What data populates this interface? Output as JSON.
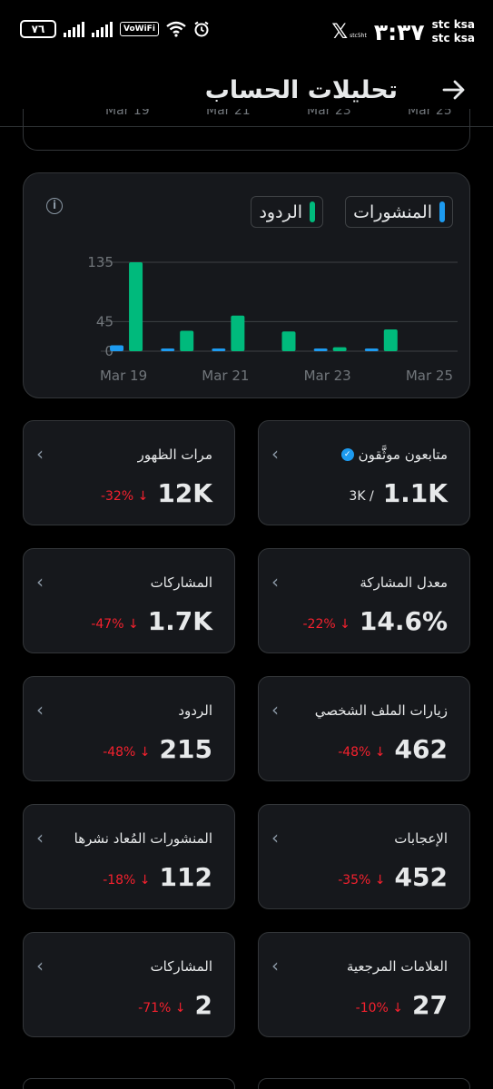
{
  "status_bar": {
    "battery": "٧٦",
    "vowifi": "VoWiFi",
    "clock": "٣:٣٧",
    "carrier_line1": "stc ksa",
    "carrier_line2": "stc ksa",
    "x_logo": "𝕏",
    "x_small": "stc5ht"
  },
  "header": {
    "title": "تحليلات الحساب",
    "back_icon": "arrow-right-icon"
  },
  "partial_chart": {
    "ticks": [
      "Mar 19",
      "Mar 21",
      "Mar 23",
      "Mar 25"
    ]
  },
  "chart": {
    "legend_posts": "المنشورات",
    "legend_replies": "الردود",
    "colors": {
      "posts": "#1d9bf0",
      "replies": "#00ba7c"
    }
  },
  "chart_data": {
    "type": "bar",
    "categories": [
      "Mar 19",
      "Mar 20",
      "Mar 21",
      "Mar 22",
      "Mar 23",
      "Mar 24",
      "Mar 25"
    ],
    "x_tick_labels": [
      "Mar 19",
      "Mar 21",
      "Mar 23",
      "Mar 25"
    ],
    "y_tick_labels": [
      "135",
      "45",
      "0"
    ],
    "series": [
      {
        "name": "المنشورات",
        "values": [
          9,
          3,
          3,
          0,
          3,
          3,
          0
        ]
      },
      {
        "name": "الردود",
        "values": [
          135,
          31,
          54,
          30,
          6,
          33,
          0
        ]
      }
    ],
    "ylim": [
      0,
      135
    ],
    "legend_position": "top-right"
  },
  "metrics": [
    {
      "label": "متابعون موثَّقون",
      "value": "1.1K",
      "sub": "3K  /",
      "verified": true
    },
    {
      "label": "مرات الظهور",
      "value": "12K",
      "change": "-32%"
    },
    {
      "label": "معدل المشاركة",
      "value": "14.6%",
      "change": "-22%"
    },
    {
      "label": "المشاركات",
      "value": "1.7K",
      "change": "-47%"
    },
    {
      "label": "زيارات الملف الشخصي",
      "value": "462",
      "change": "-48%"
    },
    {
      "label": "الردود",
      "value": "215",
      "change": "-48%"
    },
    {
      "label": "الإعجابات",
      "value": "452",
      "change": "-35%"
    },
    {
      "label": "المنشورات المُعاد نشرها",
      "value": "112",
      "change": "-18%"
    },
    {
      "label": "العلامات المرجعية",
      "value": "27",
      "change": "-10%"
    },
    {
      "label": "المشاركات",
      "value": "2",
      "change": "-71%"
    }
  ]
}
